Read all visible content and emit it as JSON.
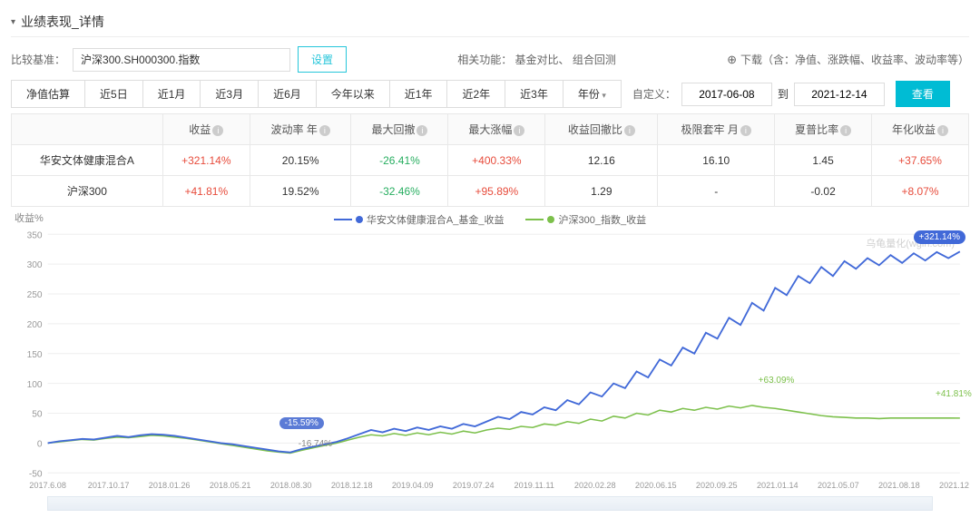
{
  "header": {
    "title": "业绩表现_详情"
  },
  "toolbar": {
    "baselineLabel": "比较基准：",
    "baselineValue": "沪深300.SH000300.指数",
    "setBtn": "设置",
    "relatedPrefix": "相关功能：",
    "relatedLinks": [
      "基金对比、",
      "组合回测"
    ],
    "downloadText": "下载（含：净值、涨跌幅、收益率、波动率等）"
  },
  "timeRange": {
    "buttons": [
      "净值估算",
      "近5日",
      "近1月",
      "近3月",
      "近6月",
      "今年以来",
      "近1年",
      "近2年",
      "近3年",
      "年份"
    ],
    "customLabel": "自定义：",
    "dateFrom": "2017-06-08",
    "dateSep": "到",
    "dateTo": "2021-12-14",
    "viewBtn": "查看"
  },
  "table": {
    "headers": [
      "",
      "收益",
      "波动率 年",
      "最大回撤",
      "最大涨幅",
      "收益回撤比",
      "极限套牢 月",
      "夏普比率",
      "年化收益"
    ],
    "rows": [
      {
        "name": "华安文体健康混合A",
        "cells": [
          "+321.14%",
          "20.15%",
          "-26.41%",
          "+400.33%",
          "12.16",
          "16.10",
          "1.45",
          "+37.65%"
        ],
        "classes": [
          "red",
          "",
          "green",
          "red",
          "",
          "",
          "",
          "red"
        ]
      },
      {
        "name": "沪深300",
        "cells": [
          "+41.81%",
          "19.52%",
          "-32.46%",
          "+95.89%",
          "1.29",
          "-",
          "-0.02",
          "+8.07%"
        ],
        "classes": [
          "red",
          "",
          "green",
          "red",
          "",
          "",
          "",
          "red"
        ]
      }
    ]
  },
  "chart": {
    "yLabel": "收益%",
    "legend": [
      {
        "label": "华安文体健康混合A_基金_收益",
        "color": "#4169d8"
      },
      {
        "label": "沪深300_指数_收益",
        "color": "#7cc04b"
      }
    ],
    "watermark": "乌龟量化(wglh.com)",
    "endBadge": "+321.14%",
    "yTicks": [
      350,
      300,
      250,
      200,
      150,
      100,
      50,
      0,
      -50
    ],
    "yMin": -50,
    "yMax": 350,
    "xTicks": [
      "2017.6.08",
      "2017.10.17",
      "2018.01.26",
      "2018.05.21",
      "2018.08.30",
      "2018.12.18",
      "2019.04.09",
      "2019.07.24",
      "2019.11.11",
      "2020.02.28",
      "2020.06.15",
      "2020.09.25",
      "2021.01.14",
      "2021.05.07",
      "2021.08.18",
      "2021.12.01"
    ],
    "annotations": {
      "minBlue": {
        "label": "-15.59%",
        "leftPct": 28,
        "topPx": 228
      },
      "minGreen": {
        "label": "-16.74%",
        "leftPct": 30,
        "topPx": 252
      },
      "maxGreen": {
        "label": "+63.09%",
        "leftPct": 78,
        "topPx": 182
      },
      "endGreen": {
        "label": "+41.81%",
        "leftPct": 96.5,
        "topPx": 197
      }
    },
    "colors": {
      "grid": "#eeeeee",
      "axis": "#dddddd",
      "tickText": "#999999",
      "seriesA": "#4169d8",
      "seriesB": "#7cc04b",
      "bg": "#ffffff"
    },
    "seriesA": [
      0,
      3,
      5,
      7,
      6,
      9,
      12,
      10,
      13,
      15,
      14,
      12,
      9,
      6,
      3,
      0,
      -2,
      -5,
      -8,
      -11,
      -14,
      -15.6,
      -10,
      -6,
      -2,
      2,
      8,
      15,
      22,
      18,
      24,
      20,
      26,
      22,
      28,
      24,
      32,
      28,
      36,
      44,
      40,
      52,
      48,
      60,
      55,
      72,
      65,
      85,
      78,
      100,
      92,
      120,
      110,
      140,
      130,
      160,
      150,
      185,
      175,
      210,
      198,
      235,
      222,
      260,
      248,
      280,
      268,
      295,
      280,
      305,
      292,
      310,
      298,
      315,
      302,
      318,
      306,
      320,
      310,
      321
    ],
    "seriesB": [
      0,
      2,
      4,
      6,
      5,
      8,
      10,
      9,
      11,
      13,
      12,
      10,
      8,
      5,
      2,
      -1,
      -4,
      -7,
      -10,
      -13,
      -15,
      -16.7,
      -12,
      -8,
      -4,
      0,
      5,
      10,
      14,
      12,
      16,
      13,
      17,
      14,
      18,
      15,
      20,
      17,
      22,
      25,
      23,
      28,
      26,
      32,
      30,
      36,
      33,
      40,
      37,
      45,
      42,
      50,
      47,
      55,
      52,
      58,
      55,
      60,
      57,
      62,
      59,
      63,
      60,
      58,
      55,
      52,
      49,
      46,
      44,
      43,
      42,
      42,
      41,
      42,
      42,
      42,
      42,
      42,
      42,
      41.8
    ]
  }
}
